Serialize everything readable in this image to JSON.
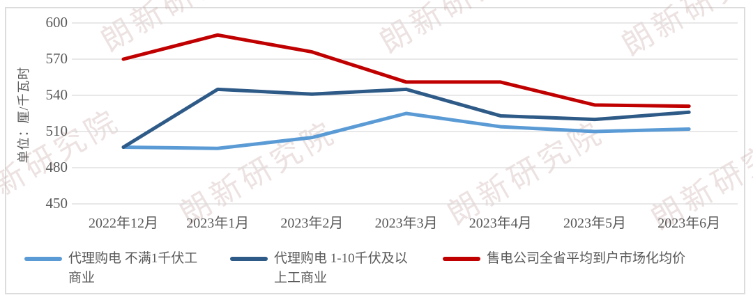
{
  "watermark": {
    "text": "朗新研究院",
    "color": "rgba(197,158,158,0.30)"
  },
  "chart_data": {
    "type": "line",
    "title": "",
    "ylabel": "单位：厘/千瓦时",
    "xlabel": "",
    "ylim": [
      450,
      600
    ],
    "ytick_step": 30,
    "yticks": [
      450,
      480,
      510,
      540,
      570,
      600
    ],
    "grid": true,
    "legend_position": "bottom",
    "categories": [
      "2022年12月",
      "2023年1月",
      "2023年2月",
      "2023年3月",
      "2023年4月",
      "2023年5月",
      "2023年6月"
    ],
    "series": [
      {
        "name": "代理购电 不满1千伏工商业",
        "color": "#5B9BD5",
        "values": [
          497,
          496,
          505,
          525,
          514,
          510,
          512
        ]
      },
      {
        "name": "代理购电 1-10千伏及以上工商业",
        "color": "#2E5A87",
        "values": [
          497,
          545,
          541,
          545,
          523,
          520,
          526
        ]
      },
      {
        "name": "售电公司全省平均到户市场化均价",
        "color": "#C00000",
        "values": [
          570,
          590,
          576,
          551,
          551,
          532,
          531
        ]
      }
    ]
  }
}
